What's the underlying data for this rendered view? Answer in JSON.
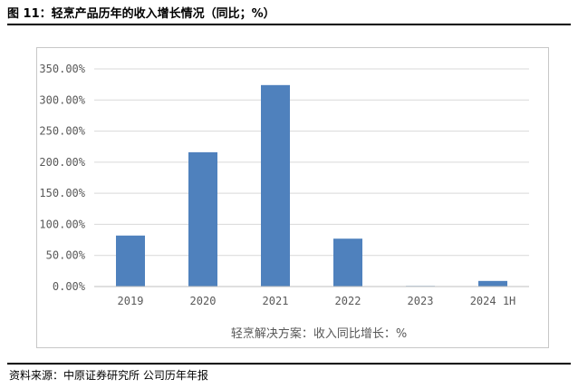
{
  "figure": {
    "title": "图 11：轻烹产品历年的收入增长情况（同比；%）",
    "source": "资料来源：中原证券研究所   公司历年年报"
  },
  "colors": {
    "bar": "#4f81bd",
    "grid": "#d9d9d9",
    "axis": "#bfbfbf",
    "text": "#595959"
  },
  "chart_data": {
    "type": "bar",
    "categories": [
      "2019",
      "2020",
      "2021",
      "2022",
      "2023",
      "2024 1H"
    ],
    "values": [
      82,
      216,
      324,
      77,
      1,
      9
    ],
    "y_ticks": [
      "0.00%",
      "50.00%",
      "100.00%",
      "150.00%",
      "200.00%",
      "250.00%",
      "300.00%",
      "350.00%"
    ],
    "ylim": [
      0,
      350
    ],
    "grid": true,
    "legend_position": "bottom",
    "series_label": "轻烹解决方案：收入同比增长：%"
  }
}
